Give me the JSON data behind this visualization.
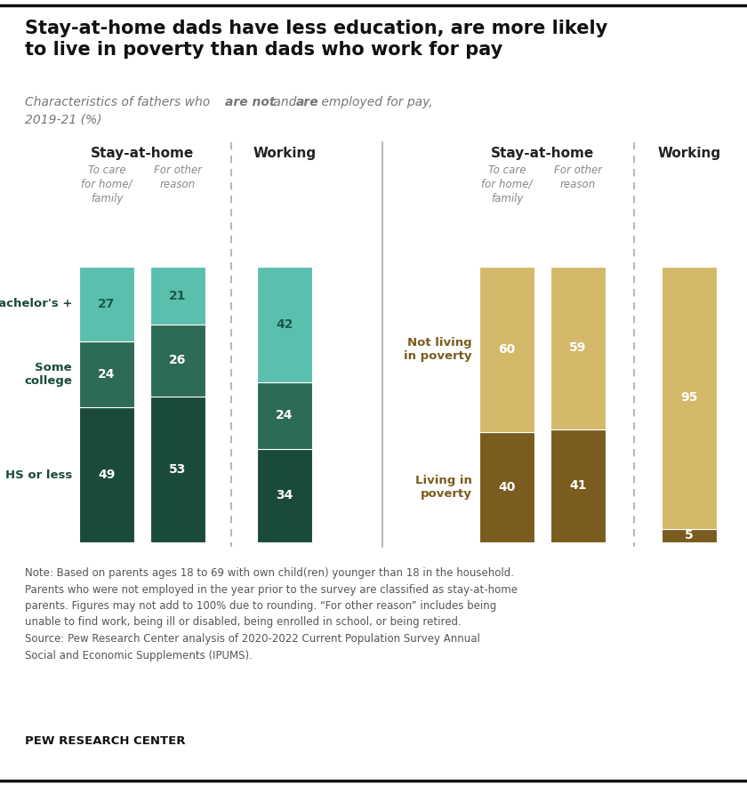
{
  "title_line1": "Stay-at-home dads have less education, are more likely",
  "title_line2": "to live in poverty than dads who work for pay",
  "left_chart": {
    "colors": {
      "hs": "#1a4a3a",
      "some": "#2d6b56",
      "bach": "#5bbfad"
    },
    "bar_values": [
      [
        49,
        24,
        27
      ],
      [
        53,
        26,
        21
      ],
      [
        34,
        24,
        42
      ]
    ]
  },
  "right_chart": {
    "colors": {
      "poor": "#7a5c1e",
      "not_poor": "#d4b96a"
    },
    "bar_values": [
      [
        40,
        60
      ],
      [
        41,
        59
      ],
      [
        5,
        95
      ]
    ]
  },
  "note_text": "Note: Based on parents ages 18 to 69 with own child(ren) younger than 18 in the household.\nParents who were not employed in the year prior to the survey are classified as stay-at-home\nparents. Figures may not add to 100% due to rounding. “For other reason” includes being\nunable to find work, being ill or disabled, being enrolled in school, or being retired.\nSource: Pew Research Center analysis of 2020-2022 Current Population Survey Annual\nSocial and Economic Supplements (IPUMS).",
  "source_label": "PEW RESEARCH CENTER",
  "bg_color": "#ffffff"
}
